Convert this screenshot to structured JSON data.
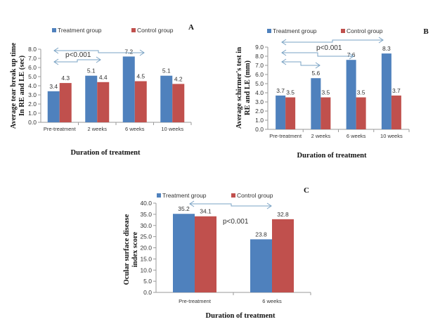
{
  "colors": {
    "treatment": "#4F81BD",
    "control": "#C0504D",
    "arrow": "#7AA3C4"
  },
  "chart_data": [
    {
      "id": "A",
      "type": "bar",
      "panel_label": "A",
      "title": "",
      "xlabel": "Duration of treatment",
      "ylabel_lines": [
        "Average tear break up time",
        "In RE and LE (sec)"
      ],
      "categories": [
        "Pre-treatment",
        "2 weeks",
        "6 weeks",
        "10 weeks"
      ],
      "series": [
        {
          "name": "Treatment group",
          "values": [
            3.4,
            5.1,
            7.2,
            5.1
          ]
        },
        {
          "name": "Control group",
          "values": [
            4.3,
            4.4,
            4.5,
            4.2
          ]
        }
      ],
      "data_labels": [
        [
          "3.4",
          "5.1",
          "7.2",
          "5.1"
        ],
        [
          "4.3",
          "4.4",
          "4.5",
          "4.2"
        ]
      ],
      "ylim": [
        0,
        8
      ],
      "yticks": [
        "0.0",
        "1.0",
        "2.0",
        "3.0",
        "4.0",
        "5.0",
        "6.0",
        "7.0",
        "8.0"
      ],
      "legend": {
        "position": "top",
        "entries": [
          "Treatment group",
          "Control group"
        ]
      },
      "annotations": [
        {
          "type": "comparison-arrow",
          "from": "Pre-treatment",
          "to": "6 weeks"
        },
        {
          "type": "comparison-arrow",
          "from": "Pre-treatment",
          "to": "2 weeks"
        },
        {
          "type": "text",
          "text": "p<0.001"
        }
      ],
      "grid": false
    },
    {
      "id": "B",
      "type": "bar",
      "panel_label": "B",
      "title": "",
      "xlabel": "Duration of treatment",
      "ylabel_lines": [
        "Average schirmer's test in",
        "RE and LE (mm)"
      ],
      "categories": [
        "Pre-treatment",
        "2 weeks",
        "6 weeks",
        "10 weeks"
      ],
      "series": [
        {
          "name": "Treatment group",
          "values": [
            3.7,
            5.6,
            7.6,
            8.3
          ]
        },
        {
          "name": "Control group",
          "values": [
            3.5,
            3.5,
            3.5,
            3.7
          ]
        }
      ],
      "data_labels": [
        [
          "3.7",
          "5.6",
          "7.6",
          "8.3"
        ],
        [
          "3.5",
          "3.5",
          "3.5",
          "3.7"
        ]
      ],
      "ylim": [
        0,
        9
      ],
      "yticks": [
        "0.0",
        "1.0",
        "2.0",
        "3.0",
        "4.0",
        "5.0",
        "6.0",
        "7.0",
        "8.0",
        "9.0"
      ],
      "legend": {
        "position": "top",
        "entries": [
          "Treatment group",
          "Control group"
        ]
      },
      "annotations": [
        {
          "type": "comparison-arrow",
          "from": "Pre-treatment",
          "to": "10 weeks"
        },
        {
          "type": "comparison-arrow",
          "from": "Pre-treatment",
          "to": "6 weeks"
        },
        {
          "type": "comparison-arrow",
          "from": "Pre-treatment",
          "to": "2 weeks"
        },
        {
          "type": "text",
          "text": "p<0.001"
        }
      ],
      "grid": false
    },
    {
      "id": "C",
      "type": "bar",
      "panel_label": "C",
      "title": "",
      "xlabel": "Duration of treatment",
      "ylabel_lines": [
        "Ocular surface disease",
        "index score"
      ],
      "categories": [
        "Pre-treatment",
        "6 weeks"
      ],
      "series": [
        {
          "name": "Treatment group",
          "values": [
            35.2,
            23.8
          ]
        },
        {
          "name": "Control group",
          "values": [
            34.1,
            32.8
          ]
        }
      ],
      "data_labels": [
        [
          "35.2",
          "23.8"
        ],
        [
          "34.1",
          "32.8"
        ]
      ],
      "ylim": [
        0,
        40
      ],
      "yticks": [
        "0.0",
        "5.0",
        "10.0",
        "15.0",
        "20.0",
        "25.0",
        "30.0",
        "35.0",
        "40.0"
      ],
      "legend": {
        "position": "top",
        "entries": [
          "Treatment group",
          "Control group"
        ]
      },
      "annotations": [
        {
          "type": "comparison-arrow",
          "from": "Pre-treatment",
          "to": "6 weeks"
        },
        {
          "type": "text",
          "text": "p<0.001"
        }
      ],
      "grid": false
    }
  ]
}
